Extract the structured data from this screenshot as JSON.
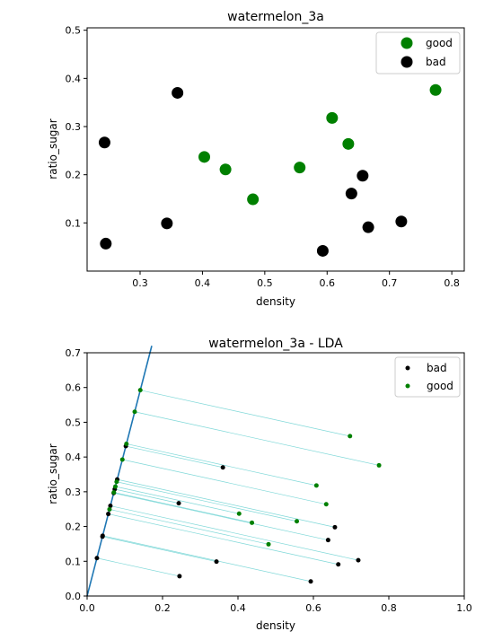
{
  "chart_data": [
    {
      "type": "scatter",
      "title": "watermelon_3a",
      "xlabel": "density",
      "ylabel": "ratio_sugar",
      "xlim": [
        0.215,
        0.82
      ],
      "ylim": [
        0.0,
        0.505
      ],
      "xticks": [
        "0.3",
        "0.4",
        "0.5",
        "0.6",
        "0.7",
        "0.8"
      ],
      "yticks": [
        "0.1",
        "0.2",
        "0.3",
        "0.4",
        "0.5"
      ],
      "legend_position": "top-right",
      "grid": false,
      "series": [
        {
          "name": "good",
          "color": "#008000",
          "points": [
            [
              0.697,
              0.46
            ],
            [
              0.774,
              0.376
            ],
            [
              0.634,
              0.264
            ],
            [
              0.608,
              0.318
            ],
            [
              0.556,
              0.215
            ],
            [
              0.403,
              0.237
            ],
            [
              0.481,
              0.149
            ],
            [
              0.437,
              0.211
            ]
          ]
        },
        {
          "name": "bad",
          "color": "#000000",
          "points": [
            [
              0.36,
              0.37
            ],
            [
              0.243,
              0.267
            ],
            [
              0.657,
              0.198
            ],
            [
              0.639,
              0.161
            ],
            [
              0.719,
              0.103
            ],
            [
              0.666,
              0.091
            ],
            [
              0.593,
              0.042
            ],
            [
              0.343,
              0.099
            ],
            [
              0.245,
              0.057
            ]
          ]
        }
      ]
    },
    {
      "type": "scatter",
      "title": "watermelon_3a - LDA",
      "xlabel": "density",
      "ylabel": "ratio_sugar",
      "xlim": [
        0.0,
        1.0
      ],
      "ylim": [
        0.0,
        0.7
      ],
      "xticks": [
        "0.0",
        "0.2",
        "0.4",
        "0.6",
        "0.8",
        "1.0"
      ],
      "yticks": [
        "0.0",
        "0.1",
        "0.2",
        "0.3",
        "0.4",
        "0.5",
        "0.6",
        "0.7"
      ],
      "legend_position": "top-right",
      "grid": false,
      "projection_line": {
        "slope": 4.2,
        "color": "#1f77b4"
      },
      "projection_color": "#7fd8d8",
      "series": [
        {
          "name": "bad",
          "color": "#000000",
          "points": [
            [
              0.36,
              0.37
            ],
            [
              0.243,
              0.267
            ],
            [
              0.657,
              0.198
            ],
            [
              0.639,
              0.161
            ],
            [
              0.719,
              0.103
            ],
            [
              0.666,
              0.091
            ],
            [
              0.593,
              0.042
            ],
            [
              0.343,
              0.099
            ],
            [
              0.245,
              0.057
            ]
          ]
        },
        {
          "name": "good",
          "color": "#008000",
          "points": [
            [
              0.697,
              0.46
            ],
            [
              0.774,
              0.376
            ],
            [
              0.634,
              0.264
            ],
            [
              0.608,
              0.318
            ],
            [
              0.556,
              0.215
            ],
            [
              0.403,
              0.237
            ],
            [
              0.481,
              0.149
            ],
            [
              0.437,
              0.211
            ]
          ]
        }
      ]
    }
  ]
}
